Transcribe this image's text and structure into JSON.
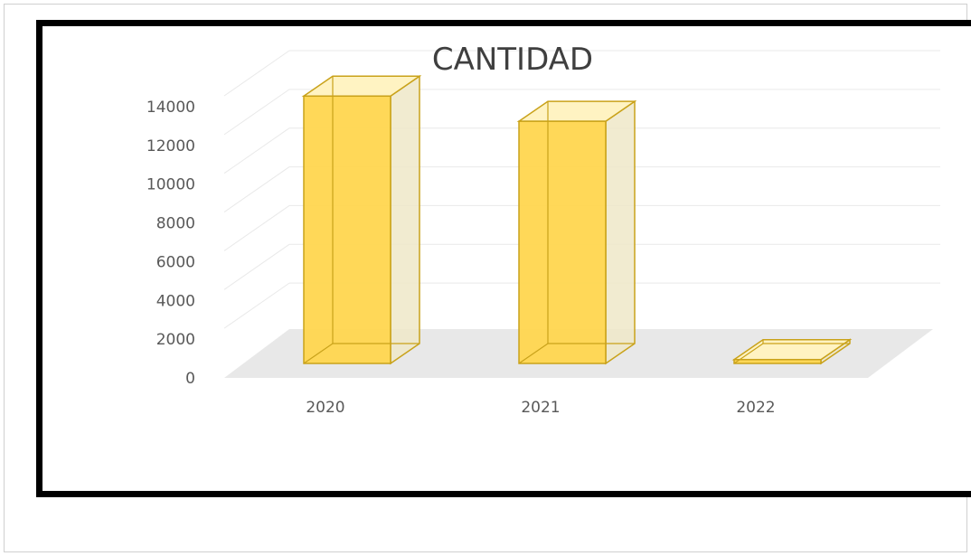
{
  "chart_data": {
    "type": "bar",
    "title": "CANTIDAD",
    "categories": [
      "2020",
      "2021",
      "2022"
    ],
    "values": [
      13800,
      12500,
      200
    ],
    "y_ticks": [
      "0",
      "2000",
      "4000",
      "6000",
      "8000",
      "10000",
      "12000",
      "14000"
    ],
    "ylim": [
      0,
      14000
    ],
    "xlabel": "",
    "ylabel": "",
    "grid": true,
    "legend": "none",
    "style": "3d",
    "colors": {
      "bar_front": "#ffd54a",
      "bar_side": "#eee7c8",
      "bar_top": "#fff3c2",
      "bar_edge": "#c9a21a",
      "floor": "#e8e8e8",
      "grid": "#e9e9e9",
      "frame": "#000000"
    }
  }
}
